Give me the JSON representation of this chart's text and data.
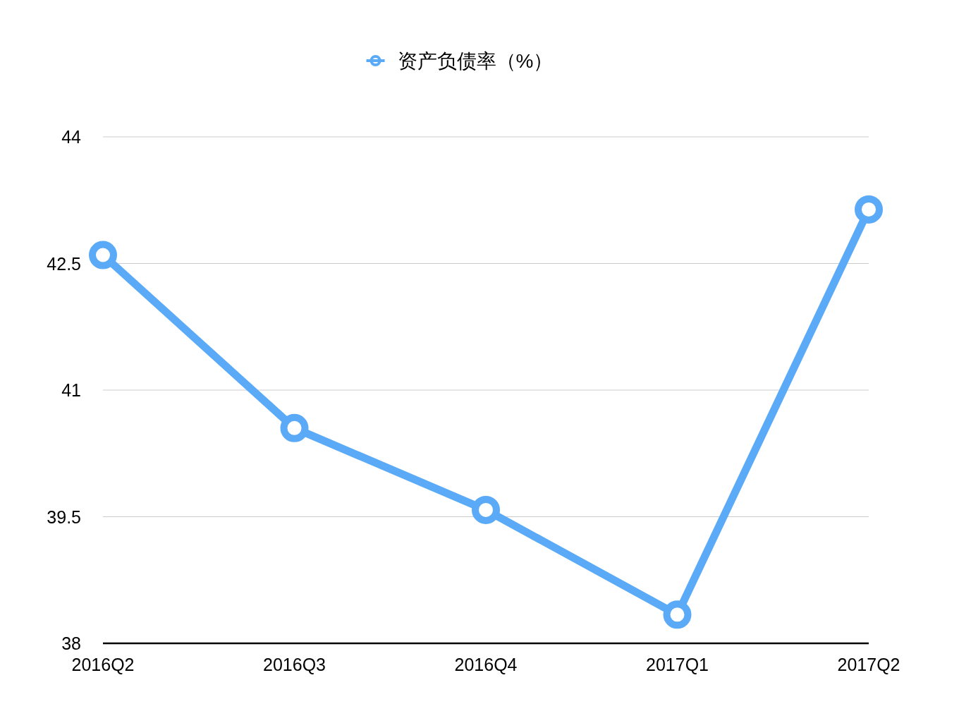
{
  "chart_data": {
    "type": "line",
    "categories": [
      "2016Q2",
      "2016Q3",
      "2016Q4",
      "2017Q1",
      "2017Q2"
    ],
    "series": [
      {
        "name": "资产负债率（%）",
        "color": "#5aaaf7",
        "values": [
          42.6,
          40.55,
          39.58,
          38.34,
          43.14
        ]
      }
    ],
    "ylim": [
      38,
      44
    ],
    "yticks": [
      38,
      39.5,
      41,
      42.5,
      44
    ],
    "grid": "y",
    "legend": "top",
    "marker": "circle",
    "line_style": "solid"
  }
}
